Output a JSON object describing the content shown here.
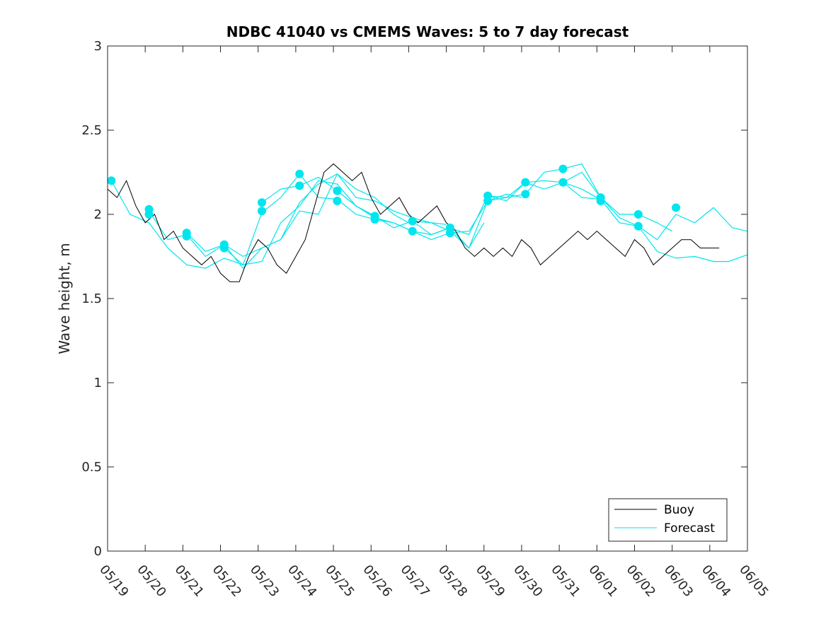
{
  "chart_data": {
    "type": "line",
    "title": "NDBC 41040 vs CMEMS Waves: 5 to 7 day forecast",
    "xlabel": "",
    "ylabel": "Wave height, m",
    "xlim": [
      "05/19",
      "06/05"
    ],
    "ylim": [
      0,
      3
    ],
    "x_ticks": [
      "05/19",
      "05/20",
      "05/21",
      "05/22",
      "05/23",
      "05/24",
      "05/25",
      "05/26",
      "05/27",
      "05/28",
      "05/29",
      "05/30",
      "05/31",
      "06/01",
      "06/02",
      "06/03",
      "06/04",
      "06/05"
    ],
    "y_ticks": [
      "0",
      "0.5",
      "1",
      "1.5",
      "2",
      "2.5",
      "3"
    ],
    "grid": false,
    "legend": {
      "position": "bottom-right",
      "entries": [
        "Buoy",
        "Forecast"
      ]
    },
    "colors": {
      "buoy": "#000000",
      "forecast": "#00e5ee"
    },
    "series": [
      {
        "name": "Buoy",
        "x_days": [
          0.0,
          0.25,
          0.5,
          0.75,
          1.0,
          1.25,
          1.5,
          1.75,
          2.0,
          2.25,
          2.5,
          2.75,
          3.0,
          3.25,
          3.5,
          3.75,
          4.0,
          4.25,
          4.5,
          4.75,
          5.0,
          5.25,
          5.5,
          5.75,
          6.0,
          6.25,
          6.5,
          6.75,
          7.0,
          7.25,
          7.5,
          7.75,
          8.0,
          8.25,
          8.5,
          8.75,
          9.0,
          9.25,
          9.5,
          9.75,
          10.0,
          10.25,
          10.5,
          10.75,
          11.0,
          11.25,
          11.5,
          11.75,
          12.0,
          12.25,
          12.5,
          12.75,
          13.0,
          13.25,
          13.5,
          13.75,
          14.0,
          14.25,
          14.5,
          14.75,
          15.0,
          15.25,
          15.5,
          15.75,
          16.0,
          16.25
        ],
        "values": [
          2.15,
          2.1,
          2.2,
          2.05,
          1.95,
          2.0,
          1.85,
          1.9,
          1.8,
          1.75,
          1.7,
          1.75,
          1.65,
          1.6,
          1.6,
          1.75,
          1.85,
          1.8,
          1.7,
          1.65,
          1.75,
          1.85,
          2.05,
          2.25,
          2.3,
          2.25,
          2.2,
          2.25,
          2.1,
          2.0,
          2.05,
          2.1,
          2.0,
          1.95,
          2.0,
          2.05,
          1.95,
          1.9,
          1.8,
          1.75,
          1.8,
          1.75,
          1.8,
          1.75,
          1.85,
          1.8,
          1.7,
          1.75,
          1.8,
          1.85,
          1.9,
          1.85,
          1.9,
          1.85,
          1.8,
          1.75,
          1.85,
          1.8,
          1.7,
          1.75,
          1.8,
          1.85,
          1.85,
          1.8,
          1.8,
          1.8
        ]
      },
      {
        "name": "Forecast",
        "runs": [
          {
            "x_days": [
              0.1,
              0.6,
              1.1,
              1.6,
              2.1,
              2.6,
              3.1,
              3.6,
              4.1,
              4.6,
              5.1,
              5.6,
              6.1,
              6.6,
              7.0
            ],
            "values": [
              2.2,
              2.0,
              1.95,
              1.8,
              1.7,
              1.68,
              1.74,
              1.7,
              1.72,
              1.95,
              2.05,
              2.2,
              2.18,
              2.05,
              2.0
            ]
          },
          {
            "x_days": [
              1.1,
              1.6,
              2.1,
              2.6,
              3.1,
              3.6,
              4.1,
              4.6,
              5.1,
              5.6,
              6.1,
              6.6,
              7.1,
              7.6,
              8.0
            ],
            "values": [
              2.02,
              1.85,
              1.88,
              1.75,
              1.82,
              1.68,
              1.8,
              1.85,
              2.02,
              2.0,
              2.24,
              2.15,
              2.1,
              2.0,
              1.95
            ]
          },
          {
            "x_days": [
              2.1,
              2.6,
              3.1,
              3.6,
              4.1,
              4.6,
              5.1,
              5.6,
              6.1,
              6.6,
              7.1,
              7.6,
              8.1,
              8.6,
              9.0
            ],
            "values": [
              1.89,
              1.78,
              1.82,
              1.75,
              1.8,
              1.85,
              2.07,
              2.18,
              2.24,
              2.1,
              2.08,
              2.02,
              1.98,
              1.95,
              1.94
            ]
          },
          {
            "x_days": [
              3.1,
              3.6,
              4.1,
              4.6,
              5.1,
              5.6,
              6.1,
              6.6,
              7.1,
              7.6,
              8.1,
              8.6,
              9.1,
              9.6,
              10.0
            ],
            "values": [
              1.8,
              1.7,
              2.01,
              2.1,
              2.24,
              2.1,
              2.09,
              2.0,
              1.97,
              1.95,
              1.9,
              1.88,
              1.92,
              1.8,
              1.95
            ]
          },
          {
            "x_days": [
              4.1,
              4.6,
              5.1,
              5.6,
              6.1,
              6.6,
              7.1,
              7.6,
              8.1,
              8.6,
              9.1,
              9.6,
              10.1,
              10.6,
              11.0
            ],
            "values": [
              2.07,
              2.15,
              2.17,
              2.22,
              2.14,
              2.05,
              1.98,
              1.95,
              1.9,
              1.85,
              1.89,
              1.9,
              2.08,
              2.12,
              2.1
            ]
          },
          {
            "x_days": [
              6.1,
              6.6,
              7.1,
              7.6,
              8.1,
              8.6,
              9.1,
              9.6,
              10.1,
              10.6,
              11.1,
              11.6,
              12.1,
              12.6,
              13.0
            ],
            "values": [
              2.14,
              2.05,
              1.99,
              1.92,
              1.96,
              1.88,
              1.92,
              1.88,
              2.11,
              2.1,
              2.19,
              2.2,
              2.19,
              2.15,
              2.1
            ]
          },
          {
            "x_days": [
              8.1,
              8.6,
              9.1,
              9.6,
              10.1,
              10.6,
              11.1,
              11.6,
              12.1,
              12.6,
              13.1,
              13.6,
              14.1,
              14.6,
              15.0
            ],
            "values": [
              1.96,
              1.95,
              1.9,
              1.8,
              2.08,
              2.1,
              2.12,
              2.25,
              2.27,
              2.3,
              2.1,
              2.0,
              2.0,
              1.95,
              1.9
            ]
          },
          {
            "x_days": [
              10.1,
              10.6,
              11.1,
              11.6,
              12.1,
              12.6,
              13.1,
              13.6,
              14.1,
              14.6,
              15.1,
              15.6,
              16.1,
              16.5,
              17.0
            ],
            "values": [
              2.11,
              2.08,
              2.19,
              2.15,
              2.19,
              2.25,
              2.1,
              1.98,
              1.93,
              1.78,
              1.74,
              1.75,
              1.72,
              1.72,
              1.76
            ]
          },
          {
            "x_days": [
              12.1,
              12.6,
              13.1,
              13.6,
              14.1,
              14.6,
              15.1,
              15.6,
              16.1,
              16.6,
              17.0
            ],
            "values": [
              2.19,
              2.1,
              2.09,
              1.95,
              1.93,
              1.85,
              2.0,
              1.95,
              2.04,
              1.92,
              1.9
            ]
          }
        ],
        "markers": {
          "x_days": [
            0.1,
            1.1,
            1.1,
            2.1,
            2.1,
            3.1,
            3.1,
            4.1,
            4.1,
            5.1,
            5.1,
            6.1,
            6.1,
            7.1,
            7.1,
            8.1,
            8.1,
            9.1,
            9.1,
            10.1,
            10.1,
            11.1,
            11.1,
            12.1,
            12.1,
            13.1,
            13.1,
            14.1,
            14.1,
            15.1
          ],
          "values": [
            2.2,
            2.03,
            2.0,
            1.89,
            1.87,
            1.82,
            1.8,
            2.07,
            2.02,
            2.24,
            2.17,
            2.14,
            2.08,
            1.99,
            1.97,
            1.96,
            1.9,
            1.92,
            1.89,
            2.11,
            2.08,
            2.19,
            2.12,
            2.27,
            2.19,
            2.1,
            2.08,
            2.0,
            1.93,
            2.04
          ]
        }
      }
    ]
  }
}
